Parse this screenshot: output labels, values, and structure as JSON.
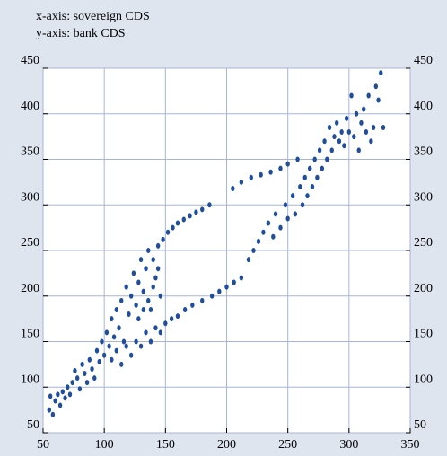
{
  "chart_data": {
    "type": "scatter",
    "xlabel": "x-axis: sovereign CDS",
    "ylabel": "y-axis: bank CDS",
    "color": "#1f4e9c",
    "grid": true,
    "xlim": [
      50,
      350
    ],
    "xticks": [
      50,
      100,
      150,
      200,
      250,
      300,
      350
    ],
    "ylim": [
      50,
      450
    ],
    "yticks": [
      50,
      100,
      150,
      200,
      250,
      300,
      350,
      400,
      450
    ],
    "x": [
      55,
      56,
      58,
      60,
      62,
      64,
      66,
      68,
      70,
      72,
      74,
      76,
      78,
      80,
      82,
      84,
      86,
      88,
      90,
      92,
      94,
      96,
      98,
      100,
      102,
      104,
      106,
      108,
      110,
      112,
      114,
      116,
      118,
      120,
      122,
      124,
      126,
      128,
      130,
      132,
      134,
      136,
      138,
      140,
      142,
      144,
      148,
      152,
      156,
      160,
      165,
      170,
      175,
      180,
      186,
      106,
      110,
      114,
      118,
      122,
      126,
      130,
      134,
      138,
      142,
      146,
      150,
      155,
      160,
      166,
      172,
      180,
      188,
      194,
      200,
      206,
      212,
      218,
      222,
      226,
      230,
      234,
      238,
      240,
      244,
      248,
      250,
      254,
      256,
      260,
      262,
      264,
      266,
      268,
      270,
      272,
      274,
      276,
      278,
      280,
      282,
      284,
      286,
      288,
      290,
      292,
      294,
      296,
      298,
      300,
      302,
      304,
      306,
      308,
      310,
      312,
      314,
      316,
      318,
      320,
      322,
      324,
      326,
      328,
      205,
      212,
      220,
      228,
      236,
      244,
      250,
      258,
      128,
      132,
      136,
      140,
      144,
      146
    ],
    "y": [
      75,
      90,
      70,
      85,
      92,
      80,
      95,
      88,
      100,
      92,
      105,
      118,
      110,
      98,
      125,
      115,
      105,
      130,
      120,
      110,
      140,
      128,
      150,
      135,
      160,
      145,
      175,
      155,
      185,
      165,
      195,
      150,
      210,
      180,
      200,
      225,
      190,
      215,
      240,
      205,
      230,
      250,
      185,
      240,
      220,
      255,
      262,
      270,
      275,
      280,
      284,
      288,
      292,
      295,
      300,
      130,
      140,
      125,
      145,
      135,
      150,
      145,
      160,
      150,
      165,
      160,
      170,
      175,
      178,
      185,
      190,
      195,
      200,
      205,
      210,
      215,
      220,
      240,
      250,
      260,
      270,
      280,
      265,
      290,
      275,
      300,
      285,
      310,
      290,
      320,
      300,
      330,
      310,
      340,
      320,
      350,
      330,
      360,
      340,
      370,
      350,
      385,
      360,
      375,
      390,
      370,
      380,
      365,
      395,
      380,
      420,
      375,
      400,
      360,
      390,
      405,
      380,
      420,
      370,
      385,
      430,
      415,
      445,
      385,
      318,
      325,
      330,
      333,
      336,
      340,
      345,
      350,
      175,
      185,
      195,
      210,
      230,
      200
    ]
  }
}
